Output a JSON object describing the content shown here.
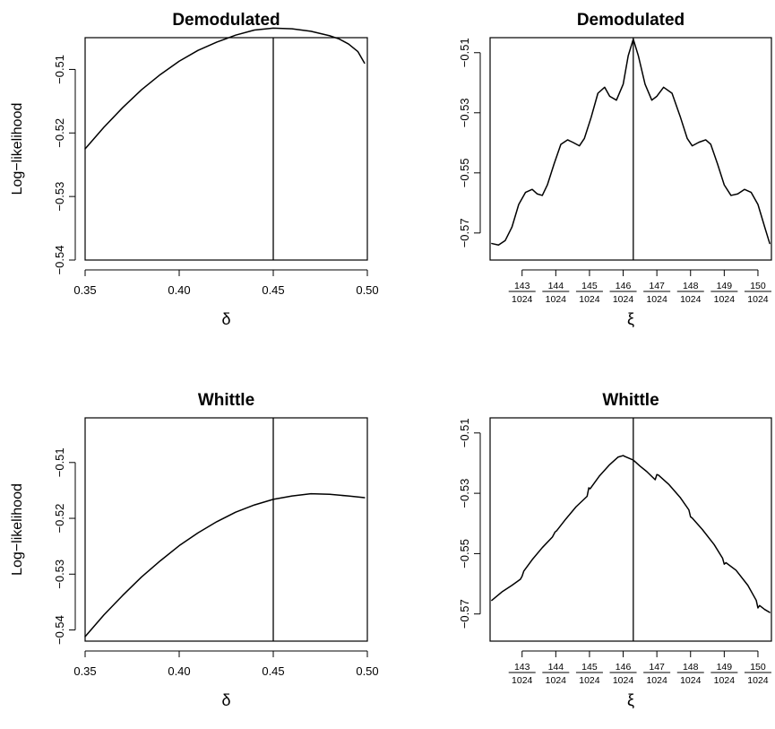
{
  "figure": {
    "layout": "2x2 grid",
    "line_color": "#000000",
    "background": "#ffffff"
  },
  "chart_data": [
    {
      "type": "line",
      "title": "Demodulated",
      "xlabel": "δ",
      "ylabel": "Log−likelihood",
      "xlim": [
        0.35,
        0.5
      ],
      "ylim": [
        -0.54,
        -0.505
      ],
      "x_ticks": [
        0.35,
        0.4,
        0.45,
        0.5
      ],
      "x_tick_labels": [
        "0.35",
        "0.40",
        "0.45",
        "0.50"
      ],
      "y_ticks": [
        -0.51,
        -0.52,
        -0.53,
        -0.54
      ],
      "y_tick_labels": [
        "−0.51",
        "−0.52",
        "−0.53",
        "−0.54"
      ],
      "grid": false,
      "vline": 0.45,
      "series": [
        {
          "x": [
            0.35,
            0.36,
            0.37,
            0.38,
            0.39,
            0.4,
            0.41,
            0.42,
            0.43,
            0.44,
            0.45,
            0.46,
            0.47,
            0.48,
            0.485,
            0.49,
            0.495,
            0.4985
          ],
          "y": [
            -0.5225,
            -0.5191,
            -0.516,
            -0.5132,
            -0.5108,
            -0.5087,
            -0.507,
            -0.5057,
            -0.5046,
            -0.5038,
            -0.5035,
            -0.5036,
            -0.504,
            -0.5047,
            -0.5052,
            -0.506,
            -0.5072,
            -0.509
          ]
        }
      ]
    },
    {
      "type": "line",
      "title": "Demodulated",
      "xlabel": "ξ",
      "ylabel": "",
      "xlim": [
        142.05,
        150.4
      ],
      "ylim": [
        -0.579,
        -0.505
      ],
      "x_ticks": [
        143,
        144,
        145,
        146,
        147,
        148,
        149,
        150
      ],
      "x_tick_numerators": [
        "143",
        "144",
        "145",
        "146",
        "147",
        "148",
        "149",
        "150"
      ],
      "x_tick_denominator": "1024",
      "y_ticks": [
        -0.51,
        -0.53,
        -0.55,
        -0.57
      ],
      "y_tick_labels": [
        "−0.51",
        "−0.53",
        "−0.55",
        "−0.57"
      ],
      "grid": false,
      "vline": 146.3,
      "series": [
        {
          "x": [
            142.1,
            142.3,
            142.5,
            142.7,
            142.9,
            143.1,
            143.3,
            143.45,
            143.6,
            143.75,
            143.95,
            144.15,
            144.35,
            144.5,
            144.7,
            144.85,
            145.05,
            145.25,
            145.45,
            145.6,
            145.8,
            146.0,
            146.15,
            146.3,
            146.45,
            146.65,
            146.85,
            147.0,
            147.2,
            147.45,
            147.7,
            147.9,
            148.05,
            148.25,
            148.45,
            148.6,
            148.8,
            149.0,
            149.2,
            149.4,
            149.6,
            149.8,
            150.0,
            150.2,
            150.35
          ],
          "y": [
            -0.5735,
            -0.574,
            -0.5725,
            -0.568,
            -0.5605,
            -0.5565,
            -0.5555,
            -0.557,
            -0.5575,
            -0.554,
            -0.547,
            -0.5405,
            -0.539,
            -0.5398,
            -0.541,
            -0.5385,
            -0.5315,
            -0.5235,
            -0.5215,
            -0.5245,
            -0.5258,
            -0.5205,
            -0.511,
            -0.5055,
            -0.511,
            -0.5205,
            -0.5258,
            -0.5245,
            -0.5215,
            -0.5235,
            -0.5315,
            -0.5385,
            -0.541,
            -0.5398,
            -0.539,
            -0.5405,
            -0.547,
            -0.554,
            -0.5575,
            -0.557,
            -0.5555,
            -0.5565,
            -0.5605,
            -0.568,
            -0.5735
          ]
        }
      ]
    },
    {
      "type": "line",
      "title": "Whittle",
      "xlabel": "δ",
      "ylabel": "Log−likelihood",
      "xlim": [
        0.35,
        0.5
      ],
      "ylim": [
        -0.542,
        -0.502
      ],
      "x_ticks": [
        0.35,
        0.4,
        0.45,
        0.5
      ],
      "x_tick_labels": [
        "0.35",
        "0.40",
        "0.45",
        "0.50"
      ],
      "y_ticks": [
        -0.51,
        -0.52,
        -0.53,
        -0.54
      ],
      "y_tick_labels": [
        "−0.51",
        "−0.52",
        "−0.53",
        "−0.54"
      ],
      "grid": false,
      "vline": 0.45,
      "series": [
        {
          "x": [
            0.35,
            0.36,
            0.37,
            0.38,
            0.39,
            0.4,
            0.41,
            0.42,
            0.43,
            0.44,
            0.45,
            0.46,
            0.47,
            0.48,
            0.49,
            0.4985
          ],
          "y": [
            -0.5412,
            -0.5373,
            -0.5338,
            -0.5305,
            -0.5276,
            -0.5249,
            -0.5226,
            -0.5206,
            -0.5189,
            -0.5176,
            -0.5166,
            -0.516,
            -0.5156,
            -0.5157,
            -0.516,
            -0.5163
          ]
        }
      ]
    },
    {
      "type": "line",
      "title": "Whittle",
      "xlabel": "ξ",
      "ylabel": "",
      "xlim": [
        142.05,
        150.4
      ],
      "ylim": [
        -0.579,
        -0.505
      ],
      "x_ticks": [
        143,
        144,
        145,
        146,
        147,
        148,
        149,
        150
      ],
      "x_tick_numerators": [
        "143",
        "144",
        "145",
        "146",
        "147",
        "148",
        "149",
        "150"
      ],
      "x_tick_denominator": "1024",
      "y_ticks": [
        -0.51,
        -0.53,
        -0.55,
        -0.57
      ],
      "y_tick_labels": [
        "−0.51",
        "−0.53",
        "−0.55",
        "−0.57"
      ],
      "grid": false,
      "vline": 146.3,
      "series": [
        {
          "x": [
            142.1,
            142.4,
            142.7,
            142.95,
            143.0,
            143.05,
            143.3,
            143.6,
            143.9,
            143.98,
            144.02,
            144.3,
            144.6,
            144.93,
            144.98,
            145.02,
            145.3,
            145.6,
            145.85,
            146.0,
            146.05,
            146.3,
            146.5,
            146.7,
            146.95,
            147.0,
            147.05,
            147.35,
            147.7,
            147.95,
            148.0,
            148.05,
            148.35,
            148.7,
            148.95,
            149.0,
            149.05,
            149.35,
            149.7,
            149.95,
            150.0,
            150.05,
            150.2,
            150.35
          ],
          "y": [
            -0.5655,
            -0.5627,
            -0.5605,
            -0.5585,
            -0.5575,
            -0.5558,
            -0.552,
            -0.548,
            -0.5445,
            -0.5428,
            -0.5425,
            -0.5385,
            -0.5345,
            -0.531,
            -0.5282,
            -0.5285,
            -0.5242,
            -0.5205,
            -0.518,
            -0.5175,
            -0.5178,
            -0.519,
            -0.521,
            -0.5228,
            -0.5255,
            -0.5238,
            -0.524,
            -0.527,
            -0.5315,
            -0.5355,
            -0.5378,
            -0.5382,
            -0.542,
            -0.547,
            -0.5515,
            -0.5535,
            -0.553,
            -0.5555,
            -0.5605,
            -0.5655,
            -0.568,
            -0.5672,
            -0.5685,
            -0.5695
          ]
        }
      ]
    }
  ]
}
